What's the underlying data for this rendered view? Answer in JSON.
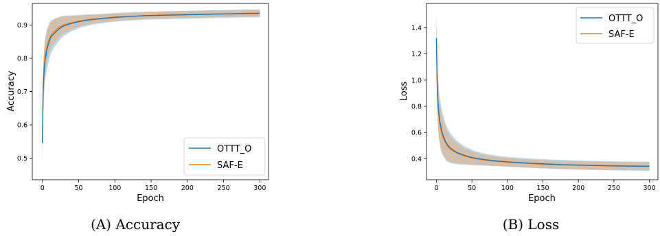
{
  "colors": {
    "series_1": "#1f77b4",
    "series_2": "#ff7f0e",
    "frame": "#000000"
  },
  "chart_data": [
    {
      "type": "line",
      "caption": "(A) Accuracy",
      "xlabel": "Epoch",
      "ylabel": "Accuracy",
      "xlim": [
        -14,
        312
      ],
      "ylim": [
        0.435,
        0.965
      ],
      "xticks": [
        0,
        50,
        100,
        150,
        200,
        250,
        300
      ],
      "yticks": [
        0.5,
        0.6,
        0.7,
        0.8,
        0.9
      ],
      "ytick_labels": [
        "0.5",
        "0.6",
        "0.7",
        "0.8",
        "0.9"
      ],
      "legend_position": "lower-right",
      "x": [
        0,
        1,
        2,
        3,
        4,
        5,
        6,
        8,
        10,
        12,
        15,
        20,
        25,
        30,
        40,
        50,
        60,
        70,
        80,
        90,
        100,
        120,
        140,
        160,
        180,
        200,
        220,
        240,
        260,
        280,
        300
      ],
      "series": [
        {
          "name": "OTTT_O",
          "values": [
            0.545,
            0.7,
            0.75,
            0.78,
            0.8,
            0.81,
            0.825,
            0.84,
            0.855,
            0.865,
            0.872,
            0.883,
            0.892,
            0.898,
            0.905,
            0.91,
            0.914,
            0.917,
            0.919,
            0.921,
            0.923,
            0.926,
            0.928,
            0.929,
            0.93,
            0.931,
            0.932,
            0.933,
            0.934,
            0.935,
            0.935
          ]
        },
        {
          "name": "SAF-E",
          "values": [
            0.55,
            0.71,
            0.76,
            0.79,
            0.81,
            0.82,
            0.835,
            0.85,
            0.862,
            0.87,
            0.878,
            0.888,
            0.896,
            0.901,
            0.907,
            0.912,
            0.915,
            0.918,
            0.92,
            0.922,
            0.924,
            0.926,
            0.928,
            0.93,
            0.931,
            0.932,
            0.933,
            0.934,
            0.934,
            0.935,
            0.936
          ]
        }
      ]
    },
    {
      "type": "line",
      "caption": "(B) Loss",
      "xlabel": "Epoch",
      "ylabel": "Loss",
      "xlim": [
        -14,
        312
      ],
      "ylim": [
        0.24,
        1.585
      ],
      "xticks": [
        0,
        50,
        100,
        150,
        200,
        250,
        300
      ],
      "yticks": [
        0.4,
        0.6,
        0.8,
        1.0,
        1.2,
        1.4
      ],
      "ytick_labels": [
        "0.4",
        "0.6",
        "0.8",
        "1.0",
        "1.2",
        "1.4"
      ],
      "legend_position": "upper-right",
      "x": [
        0,
        1,
        2,
        3,
        4,
        5,
        6,
        8,
        10,
        12,
        15,
        20,
        25,
        30,
        40,
        50,
        60,
        70,
        80,
        90,
        100,
        120,
        140,
        160,
        180,
        200,
        220,
        240,
        260,
        280,
        300
      ],
      "series": [
        {
          "name": "OTTT_O",
          "values": [
            1.32,
            1.0,
            0.85,
            0.77,
            0.72,
            0.68,
            0.65,
            0.6,
            0.57,
            0.54,
            0.51,
            0.48,
            0.46,
            0.445,
            0.425,
            0.41,
            0.4,
            0.392,
            0.386,
            0.381,
            0.377,
            0.37,
            0.364,
            0.359,
            0.355,
            0.352,
            0.349,
            0.347,
            0.345,
            0.344,
            0.343
          ]
        },
        {
          "name": "SAF-E",
          "values": [
            1.31,
            0.98,
            0.83,
            0.75,
            0.7,
            0.66,
            0.63,
            0.585,
            0.555,
            0.53,
            0.5,
            0.47,
            0.455,
            0.44,
            0.42,
            0.405,
            0.396,
            0.388,
            0.382,
            0.378,
            0.374,
            0.367,
            0.361,
            0.357,
            0.353,
            0.35,
            0.348,
            0.346,
            0.344,
            0.343,
            0.342
          ]
        }
      ]
    }
  ]
}
